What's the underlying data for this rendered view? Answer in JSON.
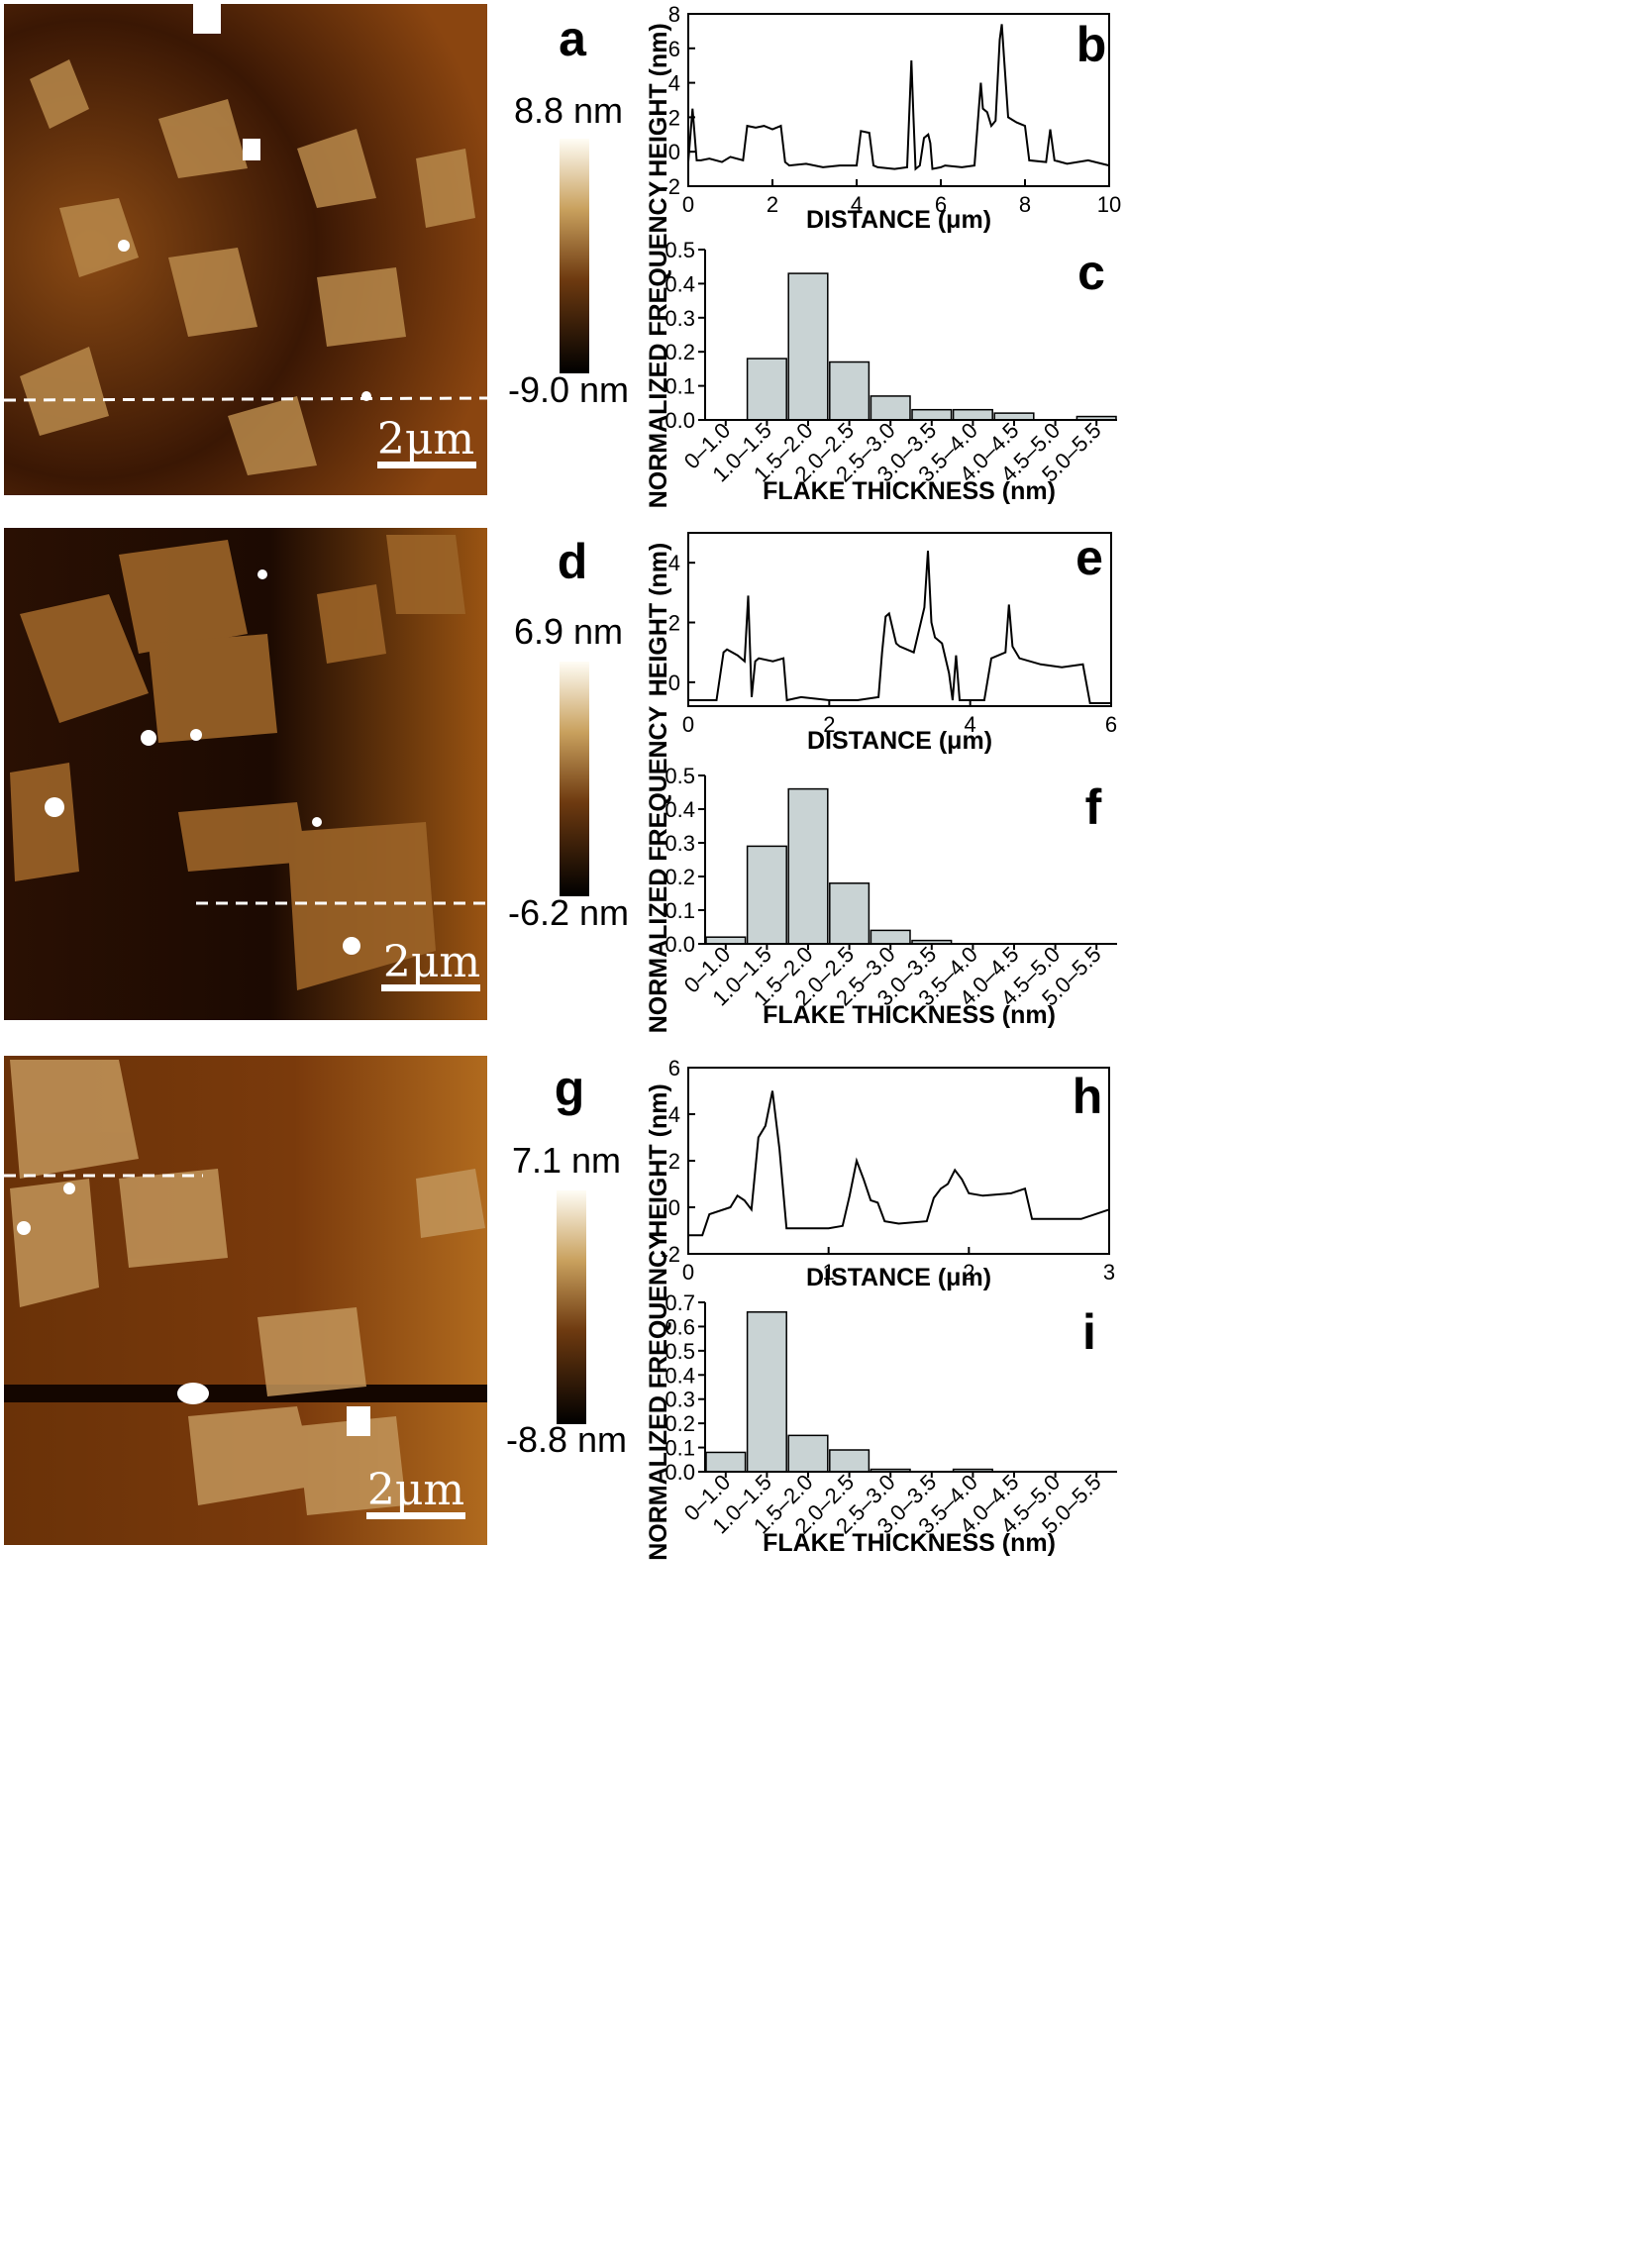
{
  "panels": [
    {
      "afm": {
        "letter": "a",
        "colorbar_top": "8.8 nm",
        "colorbar_bottom": "-9.0 nm",
        "scale_bar": "2μm"
      },
      "profile": {
        "letter": "b",
        "type": "line",
        "xlabel": "DISTANCE (μm)",
        "ylabel": "HEIGHT (nm)",
        "xlim": [
          0,
          10
        ],
        "ylim": [
          -2,
          8
        ],
        "xticks": [
          0,
          2,
          4,
          6,
          8,
          10
        ],
        "yticks": [
          -2,
          0,
          2,
          4,
          6,
          8
        ],
        "x": [
          0,
          0.1,
          0.2,
          0.3,
          0.5,
          0.8,
          1.0,
          1.3,
          1.4,
          1.6,
          1.8,
          2.0,
          2.2,
          2.3,
          2.4,
          2.8,
          3.2,
          3.6,
          4.0,
          4.1,
          4.3,
          4.4,
          4.5,
          4.9,
          5.2,
          5.3,
          5.35,
          5.4,
          5.5,
          5.6,
          5.7,
          5.75,
          5.8,
          6.0,
          6.1,
          6.5,
          6.8,
          6.95,
          7.0,
          7.1,
          7.2,
          7.3,
          7.4,
          7.45,
          7.5,
          7.6,
          7.8,
          8.0,
          8.1,
          8.5,
          8.6,
          8.7,
          9.0,
          9.5,
          10.0
        ],
        "y": [
          -0.6,
          2.5,
          -0.5,
          -0.5,
          -0.4,
          -0.6,
          -0.3,
          -0.5,
          1.5,
          1.4,
          1.5,
          1.3,
          1.5,
          -0.6,
          -0.8,
          -0.7,
          -0.9,
          -0.8,
          -0.8,
          1.2,
          1.1,
          -0.8,
          -0.9,
          -1.0,
          -0.9,
          5.3,
          2.0,
          -1.0,
          -0.8,
          0.8,
          1.0,
          0.5,
          -1.0,
          -0.9,
          -0.8,
          -0.9,
          -0.8,
          4.0,
          2.5,
          2.3,
          1.5,
          1.8,
          6.5,
          7.4,
          5.5,
          2.0,
          1.7,
          1.5,
          -0.5,
          -0.6,
          1.3,
          -0.5,
          -0.7,
          -0.5,
          -0.8
        ]
      },
      "hist": {
        "letter": "c",
        "type": "bar",
        "xlabel": "FLAKE THICKNESS (nm)",
        "ylabel": "NORMALIZED FREQUENCY",
        "ylim": [
          0,
          0.5
        ],
        "yticks": [
          0.0,
          0.1,
          0.2,
          0.3,
          0.4,
          0.5
        ],
        "categories": [
          "0–1.0",
          "1.0–1.5",
          "1.5–2.0",
          "2.0–2.5",
          "2.5–3.0",
          "3.0–3.5",
          "3.5–4.0",
          "4.0–4.5",
          "4.5–5.0",
          "5.0–5.5"
        ],
        "values": [
          0,
          0.18,
          0.43,
          0.17,
          0.07,
          0.03,
          0.03,
          0.02,
          0,
          0.01
        ]
      }
    },
    {
      "afm": {
        "letter": "d",
        "colorbar_top": "6.9 nm",
        "colorbar_bottom": "-6.2 nm",
        "scale_bar": "2μm"
      },
      "profile": {
        "letter": "e",
        "type": "line",
        "xlabel": "DISTANCE (μm)",
        "ylabel": "HEIGHT (nm)",
        "xlim": [
          0,
          6
        ],
        "ylim": [
          -0.8,
          5
        ],
        "xticks": [
          0,
          2,
          4,
          6
        ],
        "yticks": [
          0,
          2,
          4
        ],
        "x": [
          0,
          0.4,
          0.5,
          0.55,
          0.7,
          0.8,
          0.85,
          0.9,
          0.95,
          1.0,
          1.2,
          1.35,
          1.4,
          1.6,
          2.0,
          2.4,
          2.7,
          2.75,
          2.8,
          2.85,
          2.95,
          3.0,
          3.2,
          3.35,
          3.4,
          3.45,
          3.5,
          3.6,
          3.7,
          3.75,
          3.8,
          3.85,
          4.0,
          4.2,
          4.3,
          4.5,
          4.55,
          4.6,
          4.7,
          5.0,
          5.3,
          5.6,
          5.7,
          6.0
        ],
        "y": [
          -0.6,
          -0.6,
          1.0,
          1.1,
          0.9,
          0.7,
          2.9,
          -0.5,
          0.7,
          0.8,
          0.7,
          0.8,
          -0.6,
          -0.5,
          -0.6,
          -0.6,
          -0.5,
          1.0,
          2.2,
          2.3,
          1.3,
          1.2,
          1.0,
          2.5,
          4.4,
          2.0,
          1.5,
          1.3,
          0.3,
          -0.6,
          0.9,
          -0.6,
          -0.6,
          -0.6,
          0.8,
          1.0,
          2.6,
          1.2,
          0.8,
          0.6,
          0.5,
          0.6,
          -0.7,
          -0.7
        ]
      },
      "hist": {
        "letter": "f",
        "type": "bar",
        "xlabel": "FLAKE THICKNESS (nm)",
        "ylabel": "NORMALIZED FREQUENCY",
        "ylim": [
          0,
          0.5
        ],
        "yticks": [
          0.0,
          0.1,
          0.2,
          0.3,
          0.4,
          0.5
        ],
        "categories": [
          "0–1.0",
          "1.0–1.5",
          "1.5–2.0",
          "2.0–2.5",
          "2.5–3.0",
          "3.0–3.5",
          "3.5–4.0",
          "4.0–4.5",
          "4.5–5.0",
          "5.0–5.5"
        ],
        "values": [
          0.02,
          0.29,
          0.46,
          0.18,
          0.04,
          0.01,
          0,
          0,
          0,
          0
        ]
      }
    },
    {
      "afm": {
        "letter": "g",
        "colorbar_top": "7.1 nm",
        "colorbar_bottom": "-8.8 nm",
        "scale_bar": "2μm"
      },
      "profile": {
        "letter": "h",
        "type": "line",
        "xlabel": "DISTANCE (μm)",
        "ylabel": "HEIGHT (nm)",
        "xlim": [
          0,
          3
        ],
        "ylim": [
          -2,
          6
        ],
        "xticks": [
          0,
          1,
          2,
          3
        ],
        "yticks": [
          -2,
          0,
          2,
          4,
          6
        ],
        "x": [
          0,
          0.1,
          0.15,
          0.3,
          0.35,
          0.4,
          0.45,
          0.5,
          0.55,
          0.6,
          0.65,
          0.7,
          0.9,
          1.0,
          1.1,
          1.15,
          1.2,
          1.25,
          1.3,
          1.35,
          1.4,
          1.5,
          1.7,
          1.75,
          1.8,
          1.85,
          1.9,
          1.95,
          2.0,
          2.1,
          2.3,
          2.4,
          2.45,
          2.6,
          2.8,
          3.0
        ],
        "y": [
          -1.2,
          -1.2,
          -0.3,
          0.0,
          0.5,
          0.3,
          -0.1,
          3.0,
          3.5,
          5.0,
          2.5,
          -0.9,
          -0.9,
          -0.9,
          -0.8,
          0.5,
          2.0,
          1.2,
          0.3,
          0.2,
          -0.6,
          -0.7,
          -0.6,
          0.4,
          0.8,
          1.0,
          1.6,
          1.2,
          0.6,
          0.5,
          0.6,
          0.8,
          -0.5,
          -0.5,
          -0.5,
          -0.1
        ]
      },
      "hist": {
        "letter": "i",
        "type": "bar",
        "xlabel": "FLAKE THICKNESS (nm)",
        "ylabel": "NORMALIZED FREQUENCY",
        "ylim": [
          0,
          0.7
        ],
        "yticks": [
          0.0,
          0.1,
          0.2,
          0.3,
          0.4,
          0.5,
          0.6,
          0.7
        ],
        "categories": [
          "0–1.0",
          "1.0–1.5",
          "1.5–2.0",
          "2.0–2.5",
          "2.5–3.0",
          "3.0–3.5",
          "3.5–4.0",
          "4.0–4.5",
          "4.5–5.0",
          "5.0–5.5"
        ],
        "values": [
          0.08,
          0.66,
          0.15,
          0.09,
          0.01,
          0,
          0.01,
          0,
          0,
          0
        ]
      }
    }
  ],
  "colors": {
    "bar_fill": "#c9d3d4",
    "afm_dark": "#1a0800",
    "afm_mid": "#7a3a0a",
    "afm_bright": "#fff7e6"
  }
}
